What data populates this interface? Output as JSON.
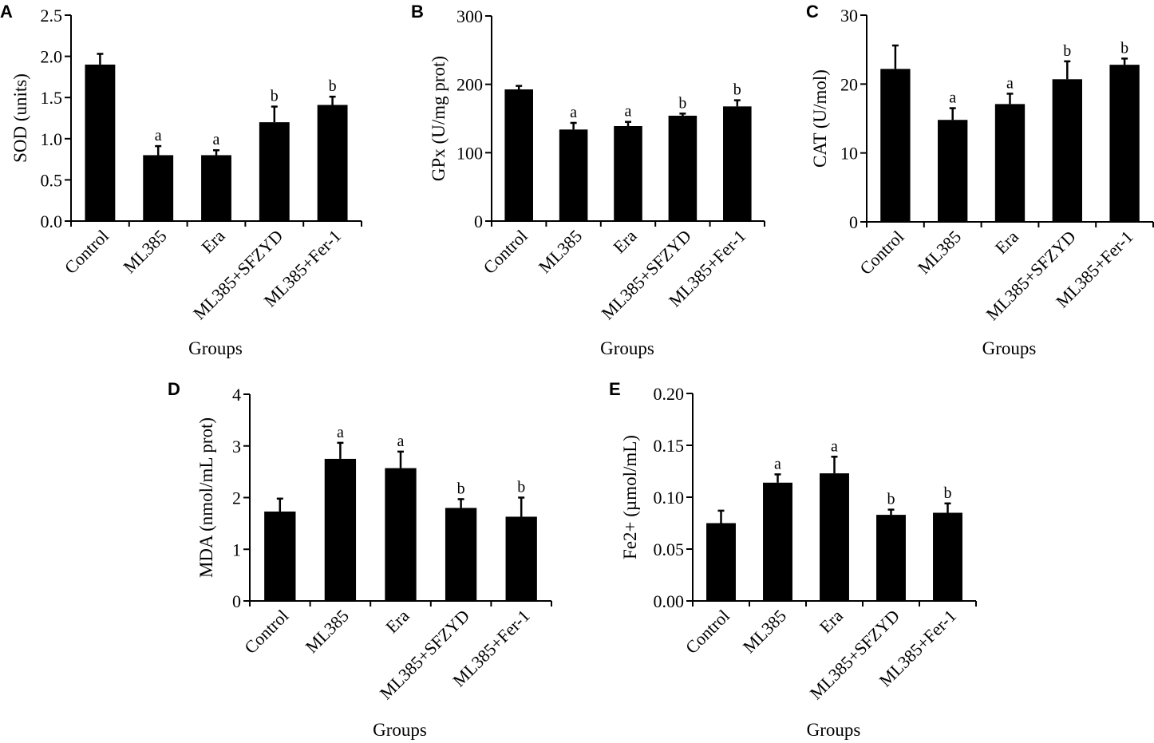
{
  "chart_data": [
    {
      "type": "bar",
      "panel": "A",
      "title": "",
      "xlabel": "Groups",
      "ylabel": "SOD (units)",
      "ylim": [
        0,
        2.5
      ],
      "yticks": [
        0.0,
        0.5,
        1.0,
        1.5,
        2.0,
        2.5
      ],
      "ytick_labels": [
        "0.0",
        "0.5",
        "1.0",
        "1.5",
        "2.0",
        "2.5"
      ],
      "categories": [
        "Control",
        "ML385",
        "Era",
        "ML385+SFZYD",
        "ML385+Fer-1"
      ],
      "values": [
        1.9,
        0.8,
        0.8,
        1.2,
        1.41
      ],
      "errors": [
        0.13,
        0.11,
        0.06,
        0.19,
        0.1
      ],
      "significance": [
        "",
        "a",
        "a",
        "b",
        "b"
      ],
      "grid": false,
      "legend": "none"
    },
    {
      "type": "bar",
      "panel": "B",
      "title": "",
      "xlabel": "Groups",
      "ylabel": "GPx (U/mg prot)",
      "ylim": [
        0,
        300
      ],
      "yticks": [
        0,
        100,
        200,
        300
      ],
      "ytick_labels": [
        "0",
        "100",
        "200",
        "300"
      ],
      "categories": [
        "Control",
        "ML385",
        "Era",
        "ML385+SFZYD",
        "ML385+Fer-1"
      ],
      "values": [
        192.6,
        133.9,
        138.9,
        154.1,
        167.7
      ],
      "errors": [
        5.1,
        9.7,
        6.2,
        3.1,
        9.0
      ],
      "significance": [
        "",
        "a",
        "a",
        "b",
        "b"
      ],
      "grid": false,
      "legend": "none"
    },
    {
      "type": "bar",
      "panel": "C",
      "title": "",
      "xlabel": "Groups",
      "ylabel": "CAT (U/mol)",
      "ylim": [
        0,
        30
      ],
      "yticks": [
        0,
        10,
        20,
        30
      ],
      "ytick_labels": [
        "0",
        "10",
        "20",
        "30"
      ],
      "categories": [
        "Control",
        "ML385",
        "Era",
        "ML385+SFZYD",
        "ML385+Fer-1"
      ],
      "values": [
        22.2,
        14.8,
        17.1,
        20.7,
        22.8
      ],
      "errors": [
        3.4,
        1.7,
        1.5,
        2.6,
        0.9
      ],
      "significance": [
        "",
        "a",
        "a",
        "b",
        "b"
      ],
      "grid": false,
      "legend": "none"
    },
    {
      "type": "bar",
      "panel": "D",
      "title": "",
      "xlabel": "Groups",
      "ylabel": "MDA (nmol/mL prot)",
      "ylim": [
        0,
        4
      ],
      "yticks": [
        0,
        1,
        2,
        3,
        4
      ],
      "ytick_labels": [
        "0",
        "1",
        "2",
        "3",
        "4"
      ],
      "categories": [
        "Control",
        "ML385",
        "Era",
        "ML385+SFZYD",
        "ML385+Fer-1"
      ],
      "values": [
        1.73,
        2.75,
        2.57,
        1.8,
        1.63
      ],
      "errors": [
        0.25,
        0.31,
        0.32,
        0.17,
        0.37
      ],
      "significance": [
        "",
        "a",
        "a",
        "b",
        "b"
      ],
      "grid": false,
      "legend": "none"
    },
    {
      "type": "bar",
      "panel": "E",
      "title": "",
      "xlabel": "Groups",
      "ylabel": "Fe2+ (µmol/mL)",
      "ylim": [
        0,
        0.2
      ],
      "yticks": [
        0.0,
        0.05,
        0.1,
        0.15,
        0.2
      ],
      "ytick_labels": [
        "0.00",
        "0.05",
        "0.10",
        "0.15",
        "0.20"
      ],
      "categories": [
        "Control",
        "ML385",
        "Era",
        "ML385+SFZYD",
        "ML385+Fer-1"
      ],
      "values": [
        0.075,
        0.114,
        0.123,
        0.083,
        0.085
      ],
      "errors": [
        0.012,
        0.008,
        0.016,
        0.005,
        0.009
      ],
      "significance": [
        "",
        "a",
        "a",
        "b",
        "b"
      ],
      "grid": false,
      "legend": "none"
    }
  ]
}
